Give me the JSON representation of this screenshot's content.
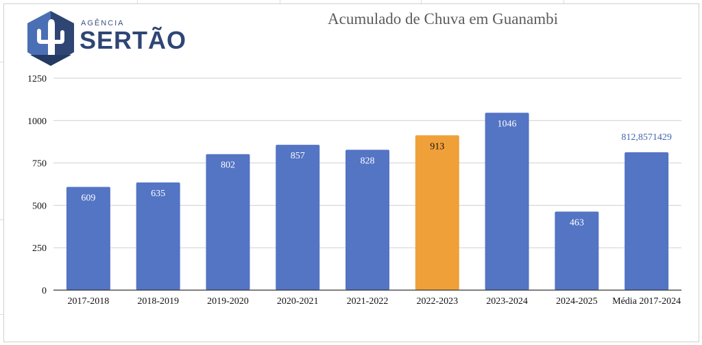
{
  "logo": {
    "small_text": "AGÊNCIA",
    "big_text": "SERTÃO",
    "colors": {
      "dark": "#2f4674",
      "light": "#4a6fb5"
    }
  },
  "chart_data": {
    "type": "bar",
    "title": "Acumulado de Chuva em Guanambi",
    "xlabel": "",
    "ylabel": "",
    "categories": [
      "2017-2018",
      "2018-2019",
      "2019-2020",
      "2020-2021",
      "2021-2022",
      "2022-2023",
      "2023-2024",
      "2024-2025",
      "Média 2017-2024"
    ],
    "values": [
      609,
      635,
      802,
      857,
      828,
      913,
      1046,
      463,
      812.8571429
    ],
    "data_labels": [
      "609",
      "635",
      "802",
      "857",
      "828",
      "913",
      "1046",
      "463",
      "812,8571429"
    ],
    "ylim": [
      0,
      1250
    ],
    "yticks": [
      0,
      250,
      500,
      750,
      1000,
      1250
    ],
    "grid": true,
    "legend": "none",
    "colors": {
      "default": "#5474c4",
      "highlight": "#f0a039",
      "highlight_index": 5,
      "outside_label": "#3f67b0",
      "inside_label": "#ffffff",
      "highlight_label": "#111111"
    }
  }
}
